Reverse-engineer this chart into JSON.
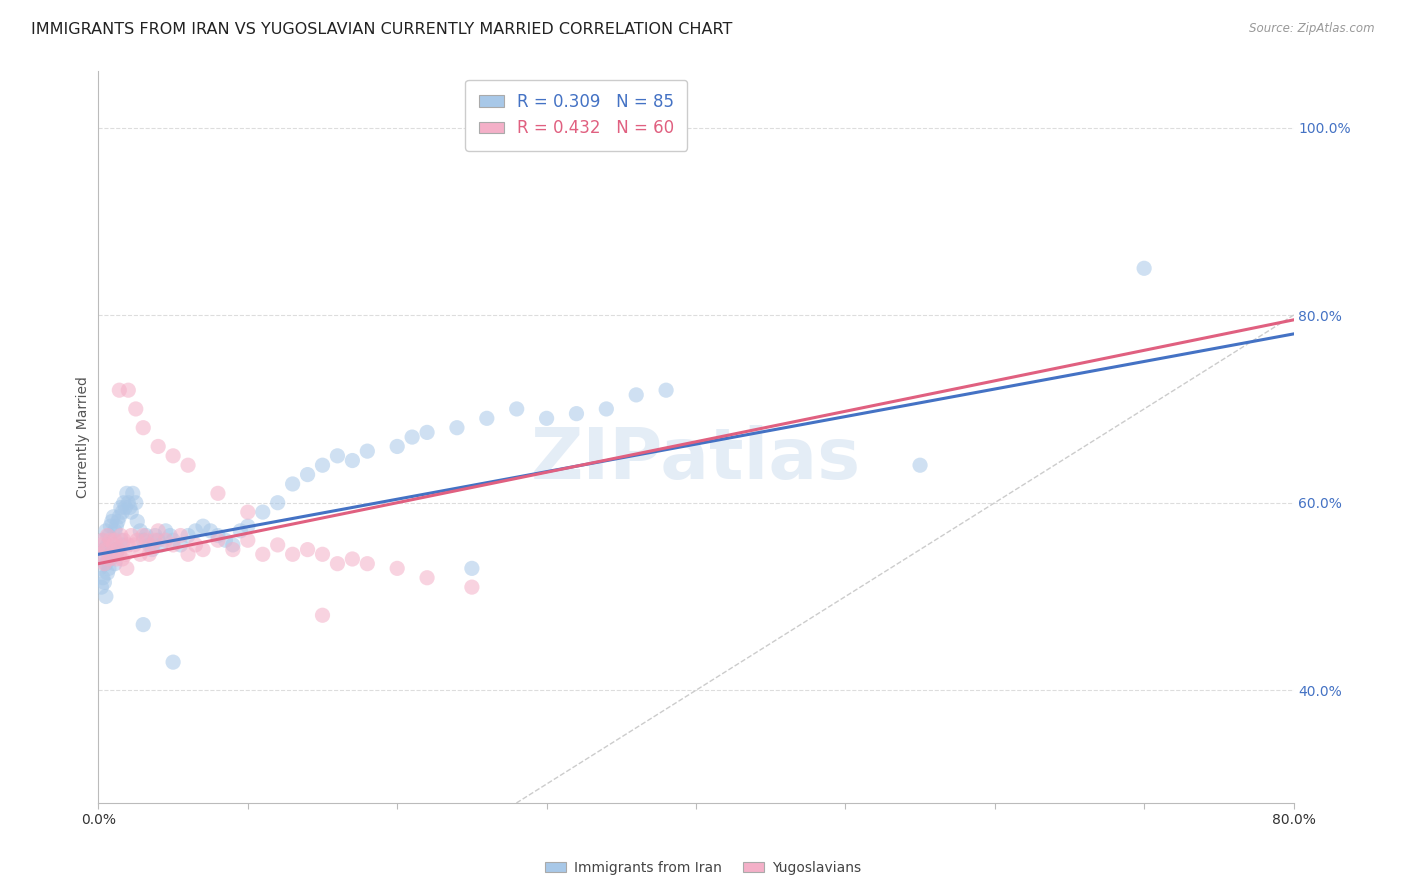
{
  "title": "IMMIGRANTS FROM IRAN VS YUGOSLAVIAN CURRENTLY MARRIED CORRELATION CHART",
  "source": "Source: ZipAtlas.com",
  "ylabel": "Currently Married",
  "y_ticks": [
    0.4,
    0.6,
    0.8,
    1.0
  ],
  "y_tick_labels": [
    "40.0%",
    "60.0%",
    "80.0%",
    "100.0%"
  ],
  "xlim": [
    0.0,
    0.8
  ],
  "ylim": [
    0.28,
    1.06
  ],
  "iran_R": 0.309,
  "iran_N": 85,
  "yugo_R": 0.432,
  "yugo_N": 60,
  "iran_color": "#a8c8e8",
  "yugo_color": "#f4b0c8",
  "iran_line_color": "#4472c4",
  "yugo_line_color": "#e06080",
  "diag_color": "#cccccc",
  "watermark": "ZIPatlas",
  "background_color": "#ffffff",
  "grid_color": "#dddddd",
  "title_fontsize": 11.5,
  "axis_label_fontsize": 10,
  "tick_fontsize": 10,
  "marker_size": 120,
  "marker_alpha": 0.55,
  "line_width": 2.2,
  "iran_line_x0": 0.0,
  "iran_line_y0": 0.545,
  "iran_line_x1": 0.8,
  "iran_line_y1": 0.78,
  "yugo_line_x0": 0.0,
  "yugo_line_y0": 0.535,
  "yugo_line_x1": 0.8,
  "yugo_line_y1": 0.795,
  "iran_pts_x": [
    0.001,
    0.002,
    0.002,
    0.003,
    0.003,
    0.004,
    0.004,
    0.005,
    0.005,
    0.005,
    0.006,
    0.006,
    0.007,
    0.007,
    0.008,
    0.008,
    0.009,
    0.009,
    0.01,
    0.01,
    0.011,
    0.011,
    0.012,
    0.012,
    0.013,
    0.013,
    0.014,
    0.015,
    0.015,
    0.016,
    0.016,
    0.017,
    0.018,
    0.019,
    0.02,
    0.021,
    0.022,
    0.023,
    0.025,
    0.026,
    0.028,
    0.03,
    0.032,
    0.034,
    0.036,
    0.038,
    0.04,
    0.042,
    0.045,
    0.048,
    0.05,
    0.055,
    0.06,
    0.065,
    0.07,
    0.075,
    0.08,
    0.085,
    0.09,
    0.095,
    0.1,
    0.11,
    0.12,
    0.13,
    0.14,
    0.15,
    0.16,
    0.17,
    0.18,
    0.2,
    0.21,
    0.22,
    0.24,
    0.26,
    0.28,
    0.3,
    0.32,
    0.34,
    0.36,
    0.38,
    0.55,
    0.03,
    0.05,
    0.25,
    0.7
  ],
  "iran_pts_y": [
    0.53,
    0.545,
    0.51,
    0.56,
    0.52,
    0.55,
    0.515,
    0.57,
    0.535,
    0.5,
    0.555,
    0.525,
    0.565,
    0.53,
    0.575,
    0.54,
    0.58,
    0.545,
    0.585,
    0.55,
    0.57,
    0.535,
    0.575,
    0.545,
    0.58,
    0.55,
    0.585,
    0.595,
    0.56,
    0.59,
    0.555,
    0.6,
    0.595,
    0.61,
    0.6,
    0.595,
    0.59,
    0.61,
    0.6,
    0.58,
    0.57,
    0.56,
    0.565,
    0.555,
    0.55,
    0.565,
    0.56,
    0.555,
    0.57,
    0.565,
    0.56,
    0.555,
    0.565,
    0.57,
    0.575,
    0.57,
    0.565,
    0.56,
    0.555,
    0.57,
    0.575,
    0.59,
    0.6,
    0.62,
    0.63,
    0.64,
    0.65,
    0.645,
    0.655,
    0.66,
    0.67,
    0.675,
    0.68,
    0.69,
    0.7,
    0.69,
    0.695,
    0.7,
    0.715,
    0.72,
    0.64,
    0.47,
    0.43,
    0.53,
    0.85
  ],
  "yugo_pts_x": [
    0.001,
    0.002,
    0.003,
    0.004,
    0.005,
    0.006,
    0.007,
    0.008,
    0.009,
    0.01,
    0.011,
    0.012,
    0.013,
    0.014,
    0.015,
    0.016,
    0.017,
    0.018,
    0.019,
    0.02,
    0.022,
    0.024,
    0.026,
    0.028,
    0.03,
    0.032,
    0.034,
    0.036,
    0.038,
    0.04,
    0.045,
    0.05,
    0.055,
    0.06,
    0.065,
    0.07,
    0.08,
    0.09,
    0.1,
    0.11,
    0.12,
    0.13,
    0.14,
    0.15,
    0.16,
    0.17,
    0.18,
    0.2,
    0.22,
    0.25,
    0.014,
    0.02,
    0.025,
    0.03,
    0.04,
    0.05,
    0.06,
    0.08,
    0.1,
    0.15
  ],
  "yugo_pts_y": [
    0.545,
    0.555,
    0.56,
    0.535,
    0.55,
    0.565,
    0.54,
    0.56,
    0.545,
    0.555,
    0.56,
    0.54,
    0.55,
    0.545,
    0.565,
    0.54,
    0.56,
    0.545,
    0.53,
    0.555,
    0.565,
    0.555,
    0.56,
    0.545,
    0.565,
    0.56,
    0.545,
    0.555,
    0.56,
    0.57,
    0.56,
    0.555,
    0.565,
    0.545,
    0.555,
    0.55,
    0.56,
    0.55,
    0.56,
    0.545,
    0.555,
    0.545,
    0.55,
    0.545,
    0.535,
    0.54,
    0.535,
    0.53,
    0.52,
    0.51,
    0.72,
    0.72,
    0.7,
    0.68,
    0.66,
    0.65,
    0.64,
    0.61,
    0.59,
    0.48
  ]
}
